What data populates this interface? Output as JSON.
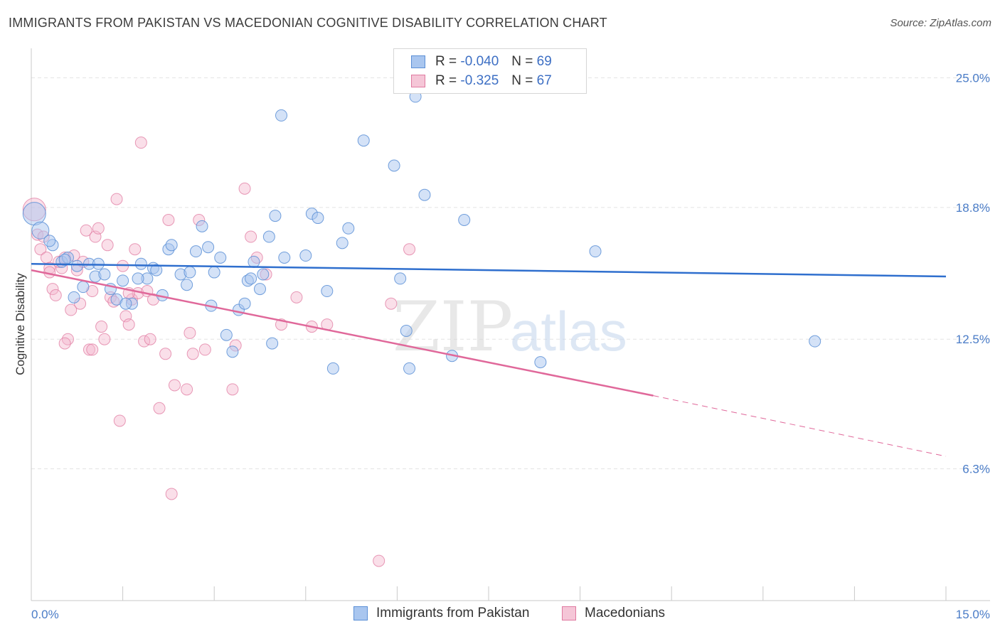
{
  "title": "IMMIGRANTS FROM PAKISTAN VS MACEDONIAN COGNITIVE DISABILITY CORRELATION CHART",
  "source": "Source: ZipAtlas.com",
  "watermark": {
    "zip": "ZIP",
    "atlas": "atlas"
  },
  "legend": {
    "rows": [
      {
        "r_label": "R =",
        "r_value": "-0.040",
        "n_label": "N =",
        "n_value": "69"
      },
      {
        "r_label": "R =",
        "r_value": "-0.325",
        "n_label": "N =",
        "n_value": "67"
      }
    ]
  },
  "colors": {
    "blue": "#5b8fd6",
    "blue_fill": "#a9c6ef",
    "blue_line": "#2f6fce",
    "pink": "#e07aa0",
    "pink_fill": "#f5b9cf",
    "pink_line": "#e0689a",
    "grid": "#e3e3e3",
    "tick_text": "#4a7cc7"
  },
  "chart_data": {
    "type": "scatter",
    "title": "IMMIGRANTS FROM PAKISTAN VS MACEDONIAN COGNITIVE DISABILITY CORRELATION CHART",
    "xlabel": "",
    "ylabel": "Cognitive Disability",
    "xlim": [
      0,
      15
    ],
    "ylim": [
      0.0,
      26.0
    ],
    "x_tick_labels": [
      "0.0%",
      "15.0%"
    ],
    "y_ticks": [
      6.3,
      12.5,
      18.8,
      25.0
    ],
    "y_tick_labels": [
      "6.3%",
      "12.5%",
      "18.8%",
      "25.0%"
    ],
    "grid": true,
    "legend_placement": "top-center",
    "series": [
      {
        "name": "Immigrants from Pakistan",
        "color": "#5b8fd6",
        "points": [
          [
            0.05,
            18.5
          ],
          [
            0.15,
            17.7
          ],
          [
            0.35,
            17.0
          ],
          [
            0.5,
            16.2
          ],
          [
            0.6,
            16.4
          ],
          [
            0.75,
            16.0
          ],
          [
            0.85,
            15.0
          ],
          [
            0.7,
            14.5
          ],
          [
            0.95,
            16.1
          ],
          [
            1.05,
            15.5
          ],
          [
            1.2,
            15.6
          ],
          [
            1.3,
            14.9
          ],
          [
            1.4,
            14.4
          ],
          [
            1.5,
            15.3
          ],
          [
            1.65,
            14.2
          ],
          [
            1.8,
            16.1
          ],
          [
            1.9,
            15.4
          ],
          [
            2.0,
            15.9
          ],
          [
            2.15,
            14.6
          ],
          [
            2.25,
            16.8
          ],
          [
            2.3,
            17.0
          ],
          [
            2.45,
            15.6
          ],
          [
            2.55,
            15.1
          ],
          [
            2.6,
            15.7
          ],
          [
            2.7,
            16.7
          ],
          [
            2.8,
            17.9
          ],
          [
            2.9,
            16.9
          ],
          [
            2.95,
            14.1
          ],
          [
            3.0,
            15.7
          ],
          [
            3.1,
            16.4
          ],
          [
            3.2,
            12.7
          ],
          [
            3.3,
            11.9
          ],
          [
            3.4,
            13.9
          ],
          [
            3.5,
            14.2
          ],
          [
            3.55,
            15.3
          ],
          [
            3.65,
            16.2
          ],
          [
            3.75,
            14.9
          ],
          [
            3.8,
            15.6
          ],
          [
            3.9,
            17.4
          ],
          [
            3.95,
            12.3
          ],
          [
            4.0,
            18.4
          ],
          [
            4.1,
            23.2
          ],
          [
            4.15,
            16.4
          ],
          [
            4.5,
            16.5
          ],
          [
            4.6,
            18.5
          ],
          [
            4.7,
            18.3
          ],
          [
            4.85,
            14.8
          ],
          [
            4.95,
            11.1
          ],
          [
            5.1,
            17.1
          ],
          [
            5.2,
            17.8
          ],
          [
            5.45,
            22.0
          ],
          [
            5.95,
            20.8
          ],
          [
            6.05,
            15.4
          ],
          [
            6.15,
            12.9
          ],
          [
            6.2,
            11.1
          ],
          [
            6.3,
            24.1
          ],
          [
            6.45,
            19.4
          ],
          [
            6.9,
            11.7
          ],
          [
            7.1,
            18.2
          ],
          [
            8.35,
            11.4
          ],
          [
            9.25,
            16.7
          ],
          [
            12.85,
            12.4
          ],
          [
            1.1,
            16.1
          ],
          [
            1.55,
            14.2
          ],
          [
            0.3,
            17.2
          ],
          [
            0.55,
            16.3
          ],
          [
            1.75,
            15.4
          ],
          [
            2.05,
            15.8
          ],
          [
            3.6,
            15.4
          ]
        ]
      },
      {
        "name": "Macedonians",
        "color": "#e07aa0",
        "points": [
          [
            0.05,
            18.7
          ],
          [
            0.1,
            17.5
          ],
          [
            0.15,
            16.8
          ],
          [
            0.2,
            17.4
          ],
          [
            0.25,
            16.4
          ],
          [
            0.3,
            15.9
          ],
          [
            0.35,
            14.9
          ],
          [
            0.4,
            14.6
          ],
          [
            0.5,
            15.9
          ],
          [
            0.55,
            16.4
          ],
          [
            0.6,
            12.5
          ],
          [
            0.65,
            13.9
          ],
          [
            0.7,
            16.5
          ],
          [
            0.75,
            15.8
          ],
          [
            0.8,
            14.2
          ],
          [
            0.85,
            16.2
          ],
          [
            0.9,
            17.7
          ],
          [
            0.95,
            12.0
          ],
          [
            1.0,
            14.8
          ],
          [
            1.05,
            17.4
          ],
          [
            1.1,
            17.8
          ],
          [
            1.15,
            13.1
          ],
          [
            1.2,
            12.5
          ],
          [
            1.25,
            17.0
          ],
          [
            1.3,
            14.5
          ],
          [
            1.35,
            14.3
          ],
          [
            1.4,
            19.2
          ],
          [
            1.45,
            8.6
          ],
          [
            1.5,
            16.0
          ],
          [
            1.55,
            13.6
          ],
          [
            1.6,
            13.2
          ],
          [
            1.65,
            14.4
          ],
          [
            1.7,
            16.8
          ],
          [
            1.75,
            14.7
          ],
          [
            1.8,
            21.9
          ],
          [
            1.85,
            12.4
          ],
          [
            1.9,
            14.8
          ],
          [
            1.95,
            12.5
          ],
          [
            2.0,
            14.4
          ],
          [
            2.1,
            9.2
          ],
          [
            2.2,
            11.8
          ],
          [
            2.25,
            18.2
          ],
          [
            2.3,
            5.1
          ],
          [
            2.35,
            10.3
          ],
          [
            2.55,
            10.1
          ],
          [
            2.6,
            12.8
          ],
          [
            2.65,
            11.8
          ],
          [
            2.75,
            18.2
          ],
          [
            2.85,
            12.0
          ],
          [
            3.3,
            10.1
          ],
          [
            3.35,
            12.2
          ],
          [
            3.5,
            19.7
          ],
          [
            3.6,
            17.4
          ],
          [
            3.7,
            16.4
          ],
          [
            3.85,
            15.6
          ],
          [
            4.1,
            13.2
          ],
          [
            4.35,
            14.5
          ],
          [
            4.6,
            13.1
          ],
          [
            4.85,
            13.2
          ],
          [
            5.7,
            1.9
          ],
          [
            5.9,
            14.2
          ],
          [
            6.2,
            16.8
          ],
          [
            0.45,
            16.2
          ],
          [
            1.0,
            12.0
          ],
          [
            0.55,
            12.3
          ],
          [
            1.6,
            14.7
          ],
          [
            0.3,
            15.7
          ]
        ]
      }
    ],
    "trend_lines": [
      {
        "series": "Immigrants from Pakistan",
        "x": [
          0,
          15
        ],
        "y": [
          16.1,
          15.5
        ],
        "style": "solid"
      },
      {
        "series": "Macedonians",
        "x": [
          0,
          10.2
        ],
        "y": [
          15.8,
          9.8
        ],
        "style": "solid"
      },
      {
        "series": "Macedonians",
        "x": [
          10.2,
          15
        ],
        "y": [
          9.8,
          6.9
        ],
        "style": "dashed"
      }
    ]
  }
}
